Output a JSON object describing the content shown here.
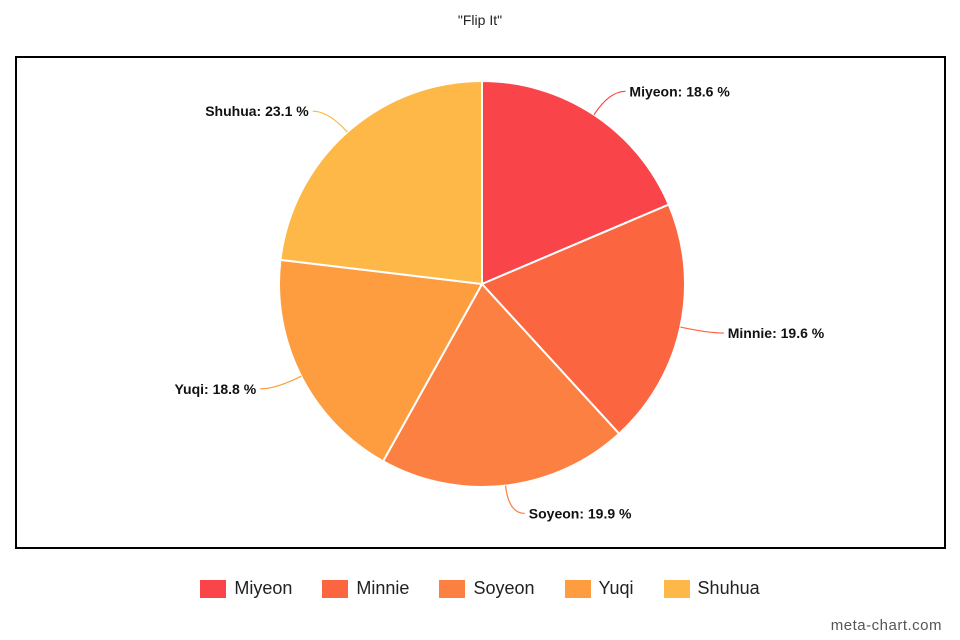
{
  "chart_data": {
    "type": "pie",
    "title": "\"Flip It\"",
    "slices": [
      {
        "name": "Miyeon",
        "value": 18.6,
        "label": "Miyeon: 18.6 %",
        "color": "#f94549"
      },
      {
        "name": "Minnie",
        "value": 19.6,
        "label": "Minnie: 19.6 %",
        "color": "#fb6640"
      },
      {
        "name": "Soyeon",
        "value": 19.9,
        "label": "Soyeon: 19.9 %",
        "color": "#fc8041"
      },
      {
        "name": "Yuqi",
        "value": 18.8,
        "label": "Yuqi: 18.8 %",
        "color": "#fd9d40"
      },
      {
        "name": "Shuhua",
        "value": 23.1,
        "label": "Shuhua: 23.1 %",
        "color": "#fdb847"
      }
    ],
    "legend_position": "bottom-center"
  },
  "watermark": "meta-chart.com"
}
